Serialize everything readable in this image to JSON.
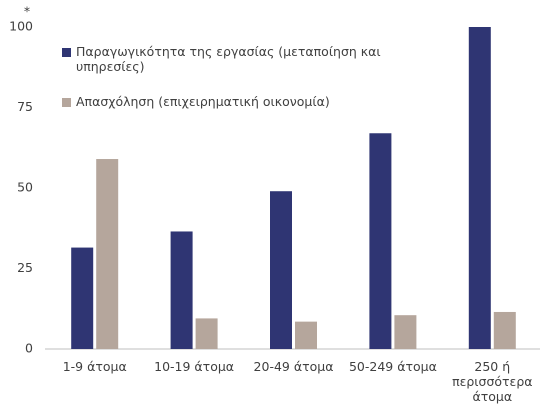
{
  "chart_data": {
    "type": "bar",
    "annotation": "*",
    "categories": [
      "1-9 άτομα",
      "10-19 άτομα",
      "20-49 άτομα",
      "50-249 άτομα",
      "250 ή περισσότερα άτομα"
    ],
    "series": [
      {
        "name": "Παραγωγικότητα της εργασίας (μεταποίηση και υπηρεσίες)",
        "color": "#2f3573",
        "values": [
          31.5,
          36.5,
          49,
          67,
          100
        ]
      },
      {
        "name": "Απασχόληση (επιχειρηματική οικονομία)",
        "color": "#b5a69c",
        "values": [
          59,
          9.5,
          8.5,
          10.5,
          11.5
        ]
      }
    ],
    "ylim": [
      0,
      100
    ],
    "yticks": [
      0,
      25,
      50,
      75,
      100
    ],
    "grid": false,
    "legend": "top-left"
  }
}
